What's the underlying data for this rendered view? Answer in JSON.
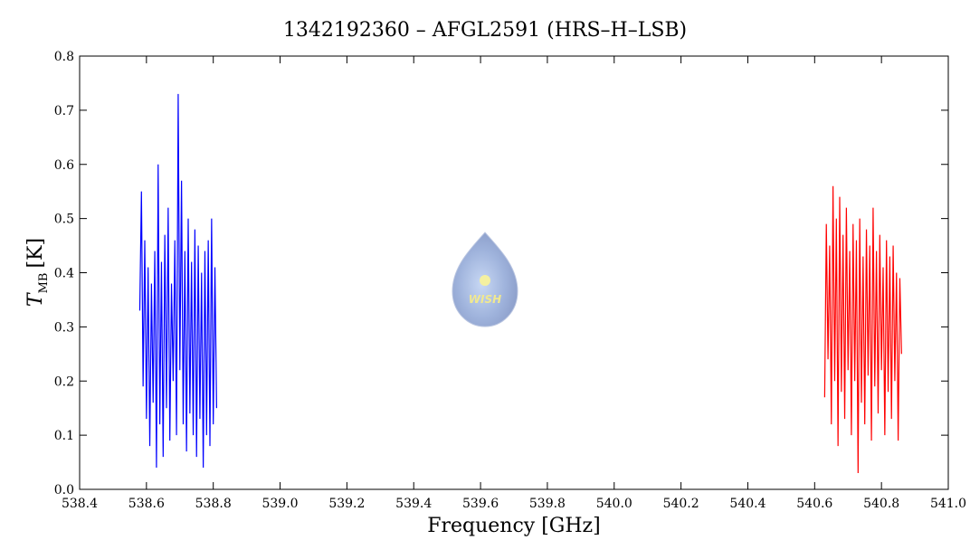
{
  "chart_data": {
    "type": "line",
    "title": "1342192360 – AFGL2591 (HRS–H–LSB)",
    "xlabel": "Frequency [GHz]",
    "ylabel": "T",
    "ylabel_sub": "MB",
    "ylabel_unit": "[K]",
    "logo_text": "WISH",
    "xlim": [
      538.4,
      541.0
    ],
    "ylim": [
      0,
      0.8
    ],
    "xticks": [
      538.4,
      538.6,
      538.8,
      {
        "value": 539,
        "label": "539.0"
      },
      539.2,
      539.4,
      539.6,
      539.8,
      {
        "value": 540,
        "label": "540.0"
      },
      540.2,
      540.4,
      540.6,
      540.8,
      {
        "value": 541,
        "label": "541.0"
      }
    ],
    "yticks": [
      {
        "value": 0,
        "label": "0.0"
      },
      0.1,
      0.2,
      0.3,
      0.4,
      0.5,
      0.6,
      0.7,
      0.8
    ],
    "series": [
      {
        "color": "#0000ff",
        "x": [
          538.58,
          538.585,
          538.59,
          538.595,
          538.6,
          538.605,
          538.61,
          538.615,
          538.62,
          538.625,
          538.63,
          538.635,
          538.64,
          538.645,
          538.65,
          538.655,
          538.66,
          538.665,
          538.67,
          538.675,
          538.68,
          538.685,
          538.69,
          538.695,
          538.7,
          538.705,
          538.71,
          538.715,
          538.72,
          538.725,
          538.73,
          538.735,
          538.74,
          538.745,
          538.75,
          538.755,
          538.76,
          538.765,
          538.77,
          538.775,
          538.78,
          538.785,
          538.79,
          538.795,
          538.8,
          538.805,
          538.81
        ],
        "values": [
          0.33,
          0.55,
          0.19,
          0.46,
          0.13,
          0.41,
          0.08,
          0.38,
          0.16,
          0.44,
          0.04,
          0.6,
          0.12,
          0.42,
          0.06,
          0.47,
          0.15,
          0.52,
          0.09,
          0.38,
          0.2,
          0.46,
          0.1,
          0.73,
          0.22,
          0.57,
          0.12,
          0.44,
          0.07,
          0.5,
          0.14,
          0.42,
          0.1,
          0.48,
          0.06,
          0.45,
          0.13,
          0.4,
          0.04,
          0.44,
          0.1,
          0.46,
          0.08,
          0.5,
          0.12,
          0.41,
          0.15
        ]
      },
      {
        "color": "#ff0000",
        "x": [
          540.63,
          540.635,
          540.64,
          540.645,
          540.65,
          540.655,
          540.66,
          540.665,
          540.67,
          540.675,
          540.68,
          540.685,
          540.69,
          540.695,
          540.7,
          540.705,
          540.71,
          540.715,
          540.72,
          540.725,
          540.73,
          540.735,
          540.74,
          540.745,
          540.75,
          540.755,
          540.76,
          540.765,
          540.77,
          540.775,
          540.78,
          540.785,
          540.79,
          540.795,
          540.8,
          540.805,
          540.81,
          540.815,
          540.82,
          540.825,
          540.83,
          540.835,
          540.84,
          540.845,
          540.85,
          540.855,
          540.86
        ],
        "values": [
          0.17,
          0.49,
          0.24,
          0.45,
          0.12,
          0.56,
          0.2,
          0.5,
          0.08,
          0.54,
          0.18,
          0.47,
          0.13,
          0.52,
          0.22,
          0.44,
          0.1,
          0.49,
          0.2,
          0.46,
          0.03,
          0.5,
          0.16,
          0.43,
          0.12,
          0.48,
          0.21,
          0.45,
          0.09,
          0.52,
          0.19,
          0.44,
          0.14,
          0.47,
          0.22,
          0.41,
          0.1,
          0.46,
          0.18,
          0.43,
          0.13,
          0.45,
          0.2,
          0.4,
          0.09,
          0.39,
          0.25
        ]
      }
    ]
  }
}
